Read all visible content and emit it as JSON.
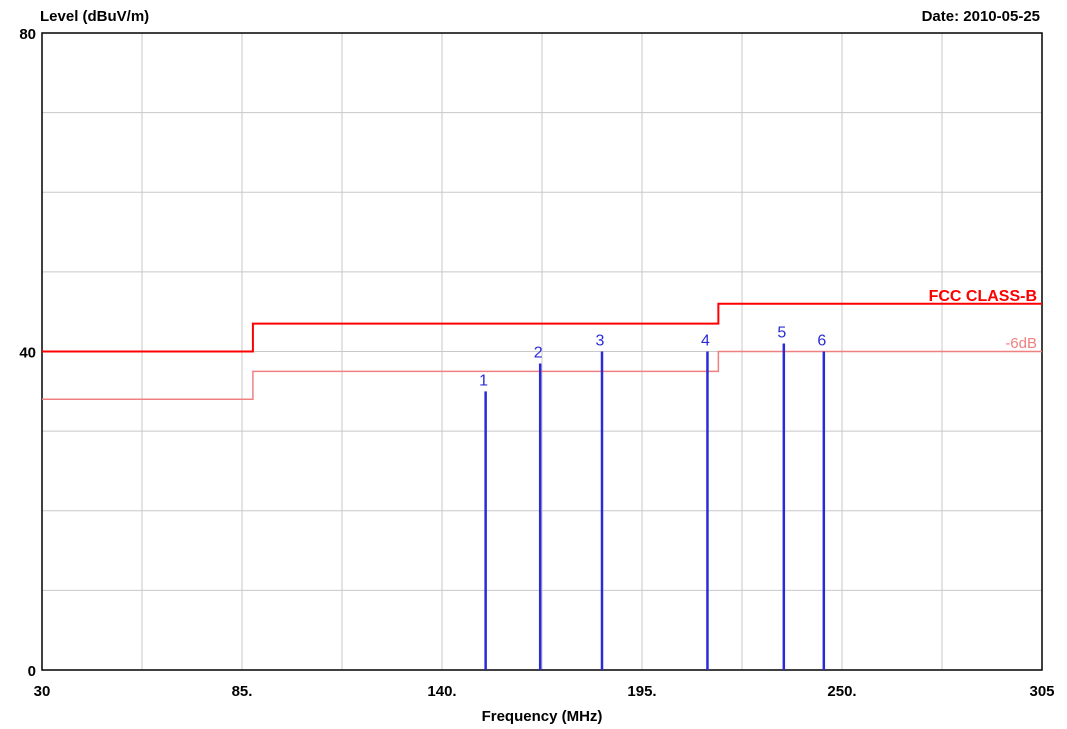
{
  "chart_data": {
    "type": "line",
    "ylabel": "Level (dBuV/m)",
    "xlabel": "Frequency (MHz)",
    "date_label": "Date: 2010-05-25",
    "xlim": [
      30,
      305
    ],
    "ylim": [
      0,
      80
    ],
    "x_ticks": [
      {
        "value": 30,
        "label": "30"
      },
      {
        "value": 85,
        "label": "85."
      },
      {
        "value": 140,
        "label": "140."
      },
      {
        "value": 195,
        "label": "195."
      },
      {
        "value": 250,
        "label": "250."
      },
      {
        "value": 305,
        "label": "305"
      }
    ],
    "y_ticks": [
      {
        "value": 0,
        "label": "0"
      },
      {
        "value": 40,
        "label": "40"
      },
      {
        "value": 80,
        "label": "80"
      }
    ],
    "x_grid": [
      30,
      57.5,
      85,
      112.5,
      140,
      167.5,
      195,
      222.5,
      250,
      277.5,
      305
    ],
    "y_grid": [
      0,
      10,
      20,
      30,
      40,
      50,
      60,
      70,
      80
    ],
    "grid": true,
    "series": [
      {
        "name": "FCC CLASS-B",
        "color": "#ff0000",
        "points": [
          [
            30,
            40
          ],
          [
            88,
            40
          ],
          [
            88,
            43.5
          ],
          [
            216,
            43.5
          ],
          [
            216,
            46
          ],
          [
            305,
            46
          ]
        ]
      },
      {
        "name": "-6dB",
        "color": "#f08080",
        "points": [
          [
            30,
            34
          ],
          [
            88,
            34
          ],
          [
            88,
            37.5
          ],
          [
            216,
            37.5
          ],
          [
            216,
            40
          ],
          [
            305,
            40
          ]
        ]
      }
    ],
    "markers": {
      "color": "#2b2bd6",
      "points": [
        {
          "label": "1",
          "x": 152,
          "y": 35
        },
        {
          "label": "2",
          "x": 167,
          "y": 38.5
        },
        {
          "label": "3",
          "x": 184,
          "y": 40
        },
        {
          "label": "4",
          "x": 213,
          "y": 40
        },
        {
          "label": "5",
          "x": 234,
          "y": 41
        },
        {
          "label": "6",
          "x": 245,
          "y": 40
        }
      ]
    }
  }
}
